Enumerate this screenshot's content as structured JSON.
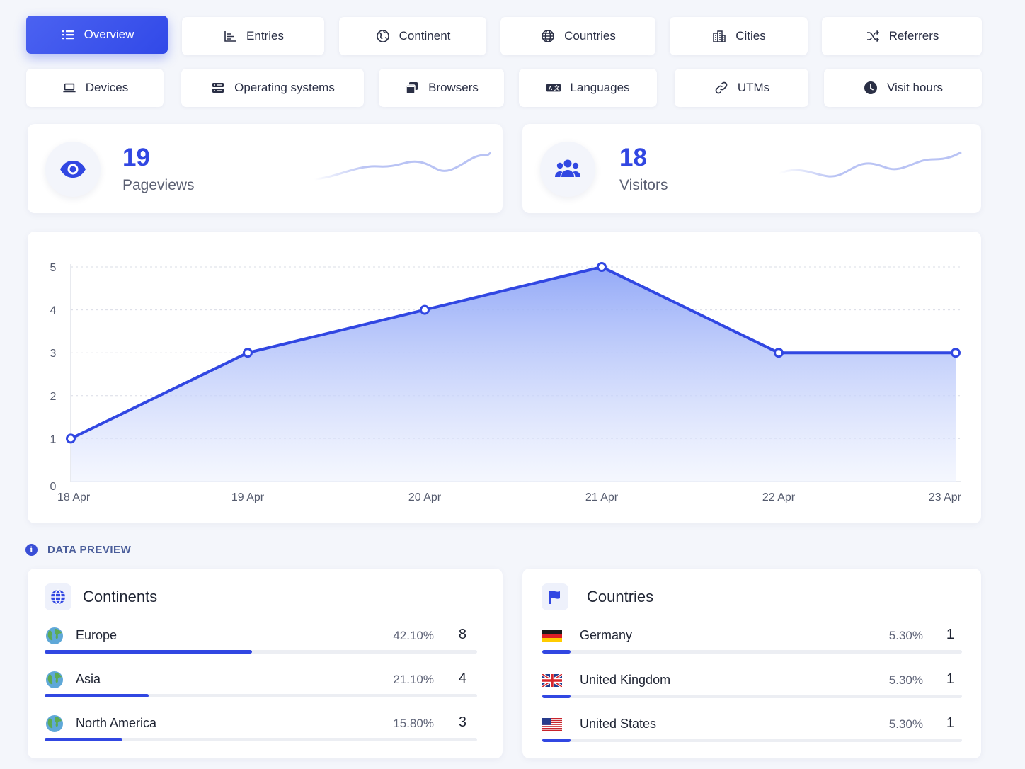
{
  "tabs_row1": [
    {
      "label": "Overview",
      "icon": "list-icon",
      "active": true
    },
    {
      "label": "Entries",
      "icon": "bar-chart-icon"
    },
    {
      "label": "Continent",
      "icon": "globe-outline-icon"
    },
    {
      "label": "Countries",
      "icon": "globe-grid-icon"
    },
    {
      "label": "Cities",
      "icon": "city-icon"
    },
    {
      "label": "Referrers",
      "icon": "shuffle-icon"
    }
  ],
  "tabs_row2": [
    {
      "label": "Devices",
      "icon": "laptop-icon"
    },
    {
      "label": "Operating systems",
      "icon": "server-icon"
    },
    {
      "label": "Browsers",
      "icon": "browser-windows-icon"
    },
    {
      "label": "Languages",
      "icon": "translate-icon"
    },
    {
      "label": "UTMs",
      "icon": "link-icon"
    },
    {
      "label": "Visit hours",
      "icon": "clock-icon"
    }
  ],
  "stats": {
    "pageviews": {
      "value": "19",
      "label": "Pageviews",
      "icon": "eye-icon"
    },
    "visitors": {
      "value": "18",
      "label": "Visitors",
      "icon": "users-icon"
    }
  },
  "colors": {
    "accent": "#3147e2",
    "fill_top": "#8ea5f7",
    "fill_bottom": "#f3f5fe",
    "spark": "#b9c3f4"
  },
  "chart_data": {
    "type": "area",
    "x": [
      "18 Apr",
      "19 Apr",
      "20 Apr",
      "21 Apr",
      "22 Apr",
      "23 Apr"
    ],
    "values": [
      1,
      3,
      4,
      5,
      3,
      3
    ],
    "ylim": [
      0,
      5
    ],
    "yticks": [
      "0",
      "1",
      "2",
      "3",
      "4",
      "5"
    ],
    "grid": true,
    "title": "",
    "xlabel": "",
    "ylabel": ""
  },
  "data_preview": {
    "title": "DATA PREVIEW",
    "continents": {
      "title": "Continents",
      "icon": "globe-icon",
      "rows": [
        {
          "name": "Europe",
          "pct": "42.10%",
          "count": "8",
          "share": 0.421,
          "icon": "earth-icon"
        },
        {
          "name": "Asia",
          "pct": "21.10%",
          "count": "4",
          "share": 0.211,
          "icon": "earth-icon"
        },
        {
          "name": "North America",
          "pct": "15.80%",
          "count": "3",
          "share": 0.158,
          "icon": "earth-icon"
        }
      ]
    },
    "countries": {
      "title": "Countries",
      "icon": "flag-icon",
      "rows": [
        {
          "name": "Germany",
          "pct": "5.30%",
          "count": "1",
          "share": 0.053,
          "icon": "germany-flag-icon"
        },
        {
          "name": "United Kingdom",
          "pct": "5.30%",
          "count": "1",
          "share": 0.053,
          "icon": "uk-flag-icon"
        },
        {
          "name": "United States",
          "pct": "5.30%",
          "count": "1",
          "share": 0.053,
          "icon": "us-flag-icon"
        }
      ]
    }
  }
}
